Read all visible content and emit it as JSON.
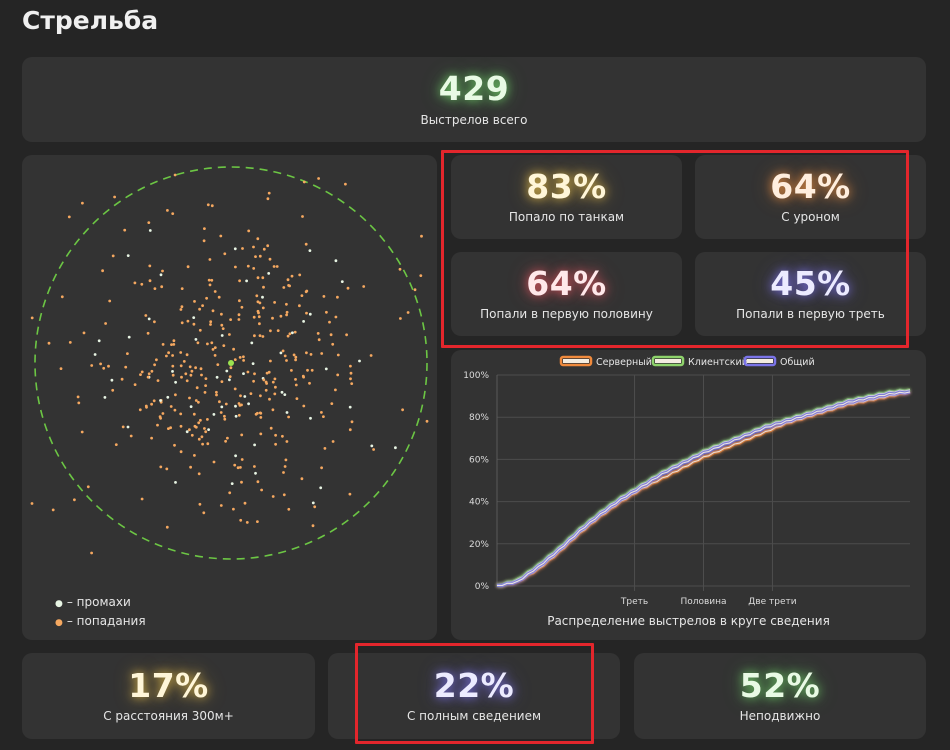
{
  "page": {
    "title": "Стрельба"
  },
  "total": {
    "value": "429",
    "label": "Выстрелов всего"
  },
  "stats_grid": [
    {
      "value": "83%",
      "label": "Попало по танкам",
      "glow": "yellow"
    },
    {
      "value": "64%",
      "label": "С уроном",
      "glow": "orange"
    },
    {
      "value": "64%",
      "label": "Попали в первую половину",
      "glow": "red"
    },
    {
      "value": "45%",
      "label": "Попали в первую треть",
      "glow": "blue"
    }
  ],
  "bottom_stats": [
    {
      "value": "17%",
      "label": "С расстояния 300м+",
      "glow": "yellow"
    },
    {
      "value": "22%",
      "label": "С полным сведением",
      "glow": "blue"
    },
    {
      "value": "52%",
      "label": "Неподвижно",
      "glow": "green"
    }
  ],
  "scatter": {
    "legend": [
      {
        "label": "– промахи",
        "color": "#e8f5e4"
      },
      {
        "label": "– попадания",
        "color": "#f5a860"
      }
    ],
    "circle_color": "#6cc644"
  },
  "colors": {
    "server": "#f08a3c",
    "client": "#8ed36b",
    "total": "#7b74e8",
    "highlight": "#e3262c"
  },
  "chart_data": {
    "type": "line",
    "title": "Распределение выстрелов в круге сведения",
    "y_ticks": [
      "0%",
      "20%",
      "40%",
      "60%",
      "80%",
      "100%"
    ],
    "ylim": [
      0,
      100
    ],
    "xlim": [
      0,
      1
    ],
    "x_ticks": [
      {
        "x": 0.333,
        "label": "Треть"
      },
      {
        "x": 0.5,
        "label": "Половина"
      },
      {
        "x": 0.667,
        "label": "Две трети"
      }
    ],
    "x": [
      0,
      0.05,
      0.1,
      0.15,
      0.2,
      0.25,
      0.3,
      0.35,
      0.4,
      0.45,
      0.5,
      0.55,
      0.6,
      0.65,
      0.7,
      0.75,
      0.8,
      0.85,
      0.9,
      0.95,
      1.0
    ],
    "series": [
      {
        "name": "Серверный",
        "color": "#f08a3c",
        "values": [
          0,
          2,
          8,
          16,
          25,
          33,
          40,
          46,
          51,
          56,
          61,
          65,
          69,
          73,
          77,
          80,
          83,
          86,
          88,
          90,
          92
        ]
      },
      {
        "name": "Клиентский",
        "color": "#8ed36b",
        "values": [
          0,
          3,
          10,
          18,
          27,
          35,
          42,
          48,
          54,
          59,
          64,
          68,
          72,
          76,
          79,
          82,
          85,
          88,
          90,
          92,
          93
        ]
      },
      {
        "name": "Общий",
        "color": "#7b74e8",
        "values": [
          0,
          2,
          9,
          17,
          26,
          34,
          41,
          47,
          53,
          58,
          63,
          67,
          71,
          75,
          78,
          81,
          84,
          87,
          89,
          91,
          92
        ]
      }
    ]
  }
}
